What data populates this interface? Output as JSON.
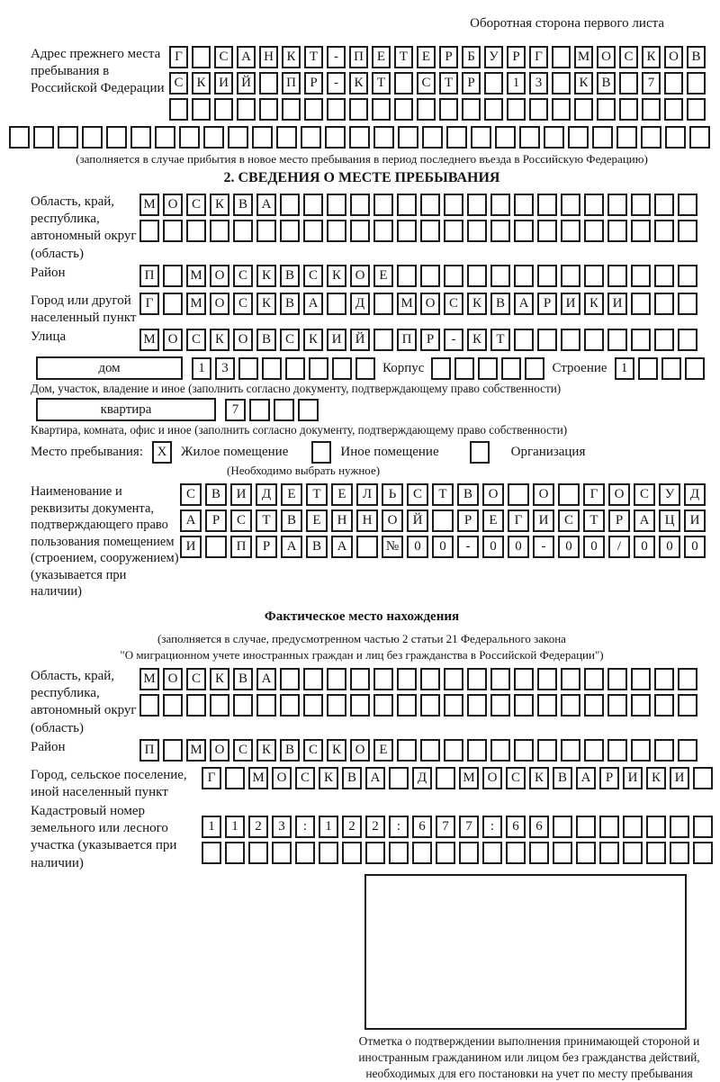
{
  "header": {
    "top_right": "Оборотная сторона первого листа"
  },
  "prev_address": {
    "label": "Адрес прежнего места пребывания в Российской Федерации",
    "rows": [
      "Г САНКТ-ПЕТЕРБУРГ МОСКОВ",
      "СКИЙ ПР-КТ СТР 13 КВ 7  ",
      "                        "
    ],
    "full_row": "                             ",
    "note": "(заполняется в случае прибытия в новое место пребывания в период последнего въезда в Российскую Федерацию)"
  },
  "section2": {
    "title": "2. СВЕДЕНИЯ О МЕСТЕ ПРЕБЫВАНИЯ",
    "region": {
      "label": "Область, край, республика, автономный округ (область)",
      "rows": [
        "МОСКВА                  ",
        "                        "
      ]
    },
    "district": {
      "label": "Район",
      "row": "П МОСКВСКОЕ             "
    },
    "city": {
      "label": "Город или другой населенный пункт",
      "row": "Г МОСКВА Д МОСКВАРИКИ   "
    },
    "street": {
      "label": "Улица",
      "row": "МОСКОВСКИЙ ПР-КТ        "
    },
    "house": {
      "label": "дом",
      "cells": "13      ",
      "korpus_label": "Корпус",
      "korpus_cells": "     ",
      "stroenie_label": "Строение",
      "stroenie_cells": "1   "
    },
    "house_note": "Дом, участок, владение и иное (заполнить согласно документу, подтверждающему право собственности)",
    "apartment": {
      "label": "квартира",
      "cells": "7   "
    },
    "apartment_note": "Квартира, комната, офис и иное (заполнить согласно документу, подтверждающему право собственности)",
    "place_type": {
      "label": "Место пребывания:",
      "options": [
        {
          "label": "Жилое помещение",
          "mark": "X"
        },
        {
          "label": "Иное помещение",
          "mark": ""
        },
        {
          "label": "Организация",
          "mark": ""
        }
      ],
      "note": "(Необходимо выбрать нужное)"
    },
    "document": {
      "label": "Наименование и реквизиты документа, подтверждающего право пользования помещением (строением, сооружением) (указывается при наличии)",
      "rows": [
        "СВИДЕТЕЛЬСТВО О ГОСУД",
        "АРСТВЕННОЙ РЕГИСТРАЦИ",
        "И ПРАВА №00-00-00/000"
      ]
    }
  },
  "actual_location": {
    "title": "Фактическое место нахождения",
    "note1": "(заполняется в случае, предусмотренном частью 2 статьи 21 Федерального закона",
    "note2": "\"О миграционном учете иностранных граждан и лиц без гражданства в Российской Федерации\")",
    "region": {
      "label": "Область, край, республика, автономный округ (область)",
      "rows": [
        "МОСКВА                  ",
        "                        "
      ]
    },
    "district": {
      "label": "Район",
      "row": "П МОСКВСКОЕ             "
    },
    "city": {
      "label": "Город, сельское поселение, иной населенный пункт",
      "row": "Г МОСКВА Д МОСКВАРИКИ "
    },
    "cadastral": {
      "label": "Кадастровый номер земельного или лесного участка (указывается при наличии)",
      "rows": [
        "1123:122:677:66       ",
        "                      "
      ]
    },
    "stamp_caption": "Отметка о подтверждении выполнения принимающей стороной и иностранным гражданином или лицом без гражданства действий, необходимых для его постановки на учет по месту пребывания"
  }
}
